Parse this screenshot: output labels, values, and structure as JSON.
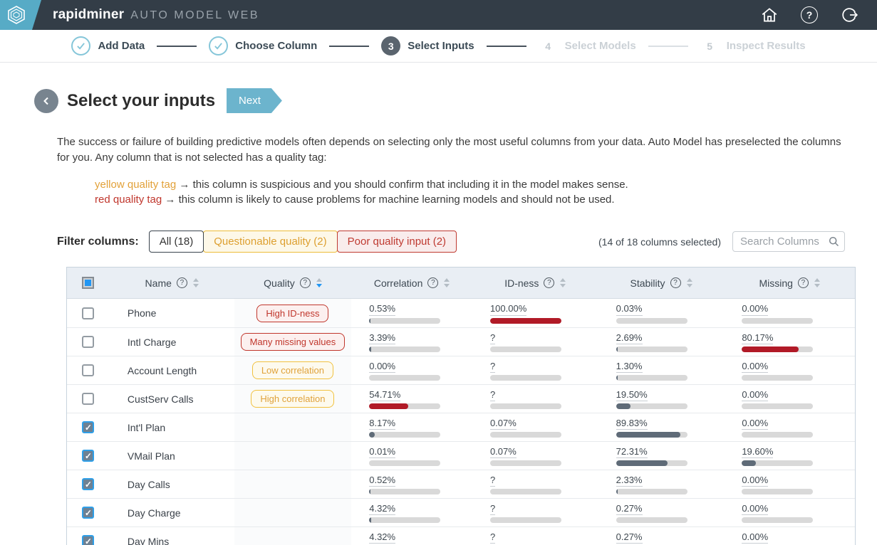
{
  "topbar": {
    "brand": "rapidminer",
    "brand_suffix": "AUTO MODEL WEB"
  },
  "icons": {
    "help_glyph": "?"
  },
  "stepper": {
    "steps": [
      {
        "label": "Add Data",
        "number": "",
        "state": "done"
      },
      {
        "label": "Choose Column",
        "number": "",
        "state": "done"
      },
      {
        "label": "Select Inputs",
        "number": "3",
        "state": "current"
      },
      {
        "label": "Select Models",
        "number": "4",
        "state": "upcoming"
      },
      {
        "label": "Inspect Results",
        "number": "5",
        "state": "upcoming"
      }
    ]
  },
  "header": {
    "title": "Select your inputs",
    "next_label": "Next"
  },
  "intro": {
    "paragraph": "The success or failure of building predictive models often depends on selecting only the most useful columns from your data. Auto Model has preselected the columns for you. Any column that is not selected has a quality tag:",
    "yellow_tag_label": "yellow quality tag",
    "yellow_tag_text": " → this column is suspicious and you should confirm that including it in the model makes sense.",
    "red_tag_label": "red quality tag",
    "red_tag_text": " → this column is likely to cause problems for machine learning models and should not be used."
  },
  "filter": {
    "label": "Filter columns:",
    "all_label": "All (18)",
    "questionable_label": "Questionable quality (2)",
    "poor_label": "Poor quality input (2)",
    "selection_summary": "(14 of 18 columns selected)",
    "search_placeholder": "Search Columns"
  },
  "table": {
    "columns": [
      {
        "label": "Name",
        "sort": ""
      },
      {
        "label": "Quality",
        "sort": "desc"
      },
      {
        "label": "Correlation",
        "sort": ""
      },
      {
        "label": "ID-ness",
        "sort": ""
      },
      {
        "label": "Stability",
        "sort": ""
      },
      {
        "label": "Missing",
        "sort": ""
      }
    ],
    "header_checkbox_state": "indeterminate",
    "rows": [
      {
        "name": "Phone",
        "checked": false,
        "quality": {
          "label": "High ID-ness",
          "type": "red"
        },
        "correlation": {
          "value": "0.53%",
          "fill": 2,
          "color": "slate"
        },
        "idness": {
          "value": "100.00%",
          "fill": 100,
          "color": "red"
        },
        "stability": {
          "value": "0.03%",
          "fill": 0,
          "color": "slate"
        },
        "missing": {
          "value": "0.00%",
          "fill": 0,
          "color": "slate"
        }
      },
      {
        "name": "Intl Charge",
        "checked": false,
        "quality": {
          "label": "Many missing values",
          "type": "red"
        },
        "correlation": {
          "value": "3.39%",
          "fill": 3,
          "color": "slate"
        },
        "idness": {
          "value": "?",
          "fill": 0,
          "color": "slate"
        },
        "stability": {
          "value": "2.69%",
          "fill": 2,
          "color": "slate"
        },
        "missing": {
          "value": "80.17%",
          "fill": 80,
          "color": "red"
        }
      },
      {
        "name": "Account Length",
        "checked": false,
        "quality": {
          "label": "Low correlation",
          "type": "yellow"
        },
        "correlation": {
          "value": "0.00%",
          "fill": 0,
          "color": "slate"
        },
        "idness": {
          "value": "?",
          "fill": 0,
          "color": "slate"
        },
        "stability": {
          "value": "1.30%",
          "fill": 2,
          "color": "slate"
        },
        "missing": {
          "value": "0.00%",
          "fill": 0,
          "color": "slate"
        }
      },
      {
        "name": "CustServ Calls",
        "checked": false,
        "quality": {
          "label": "High correlation",
          "type": "yellow"
        },
        "correlation": {
          "value": "54.71%",
          "fill": 55,
          "color": "red"
        },
        "idness": {
          "value": "?",
          "fill": 0,
          "color": "slate"
        },
        "stability": {
          "value": "19.50%",
          "fill": 20,
          "color": "slate"
        },
        "missing": {
          "value": "0.00%",
          "fill": 0,
          "color": "slate"
        }
      },
      {
        "name": "Int'l Plan",
        "checked": true,
        "quality": {
          "label": null,
          "type": null
        },
        "correlation": {
          "value": "8.17%",
          "fill": 8,
          "color": "slate"
        },
        "idness": {
          "value": "0.07%",
          "fill": 0,
          "color": "slate"
        },
        "stability": {
          "value": "89.83%",
          "fill": 90,
          "color": "slate"
        },
        "missing": {
          "value": "0.00%",
          "fill": 0,
          "color": "slate"
        }
      },
      {
        "name": "VMail Plan",
        "checked": true,
        "quality": {
          "label": null,
          "type": null
        },
        "correlation": {
          "value": "0.01%",
          "fill": 0,
          "color": "slate"
        },
        "idness": {
          "value": "0.07%",
          "fill": 0,
          "color": "slate"
        },
        "stability": {
          "value": "72.31%",
          "fill": 72,
          "color": "slate"
        },
        "missing": {
          "value": "19.60%",
          "fill": 20,
          "color": "slate"
        }
      },
      {
        "name": "Day Calls",
        "checked": true,
        "quality": {
          "label": null,
          "type": null
        },
        "correlation": {
          "value": "0.52%",
          "fill": 2,
          "color": "slate"
        },
        "idness": {
          "value": "?",
          "fill": 0,
          "color": "slate"
        },
        "stability": {
          "value": "2.33%",
          "fill": 2,
          "color": "slate"
        },
        "missing": {
          "value": "0.00%",
          "fill": 0,
          "color": "slate"
        }
      },
      {
        "name": "Day Charge",
        "checked": true,
        "quality": {
          "label": null,
          "type": null
        },
        "correlation": {
          "value": "4.32%",
          "fill": 3,
          "color": "slate"
        },
        "idness": {
          "value": "?",
          "fill": 0,
          "color": "slate"
        },
        "stability": {
          "value": "0.27%",
          "fill": 0,
          "color": "slate"
        },
        "missing": {
          "value": "0.00%",
          "fill": 0,
          "color": "slate"
        }
      },
      {
        "name": "Day Mins",
        "checked": true,
        "quality": {
          "label": null,
          "type": null
        },
        "correlation": {
          "value": "4.32%",
          "fill": 3,
          "color": "slate"
        },
        "idness": {
          "value": "?",
          "fill": 0,
          "color": "slate"
        },
        "stability": {
          "value": "0.27%",
          "fill": 0,
          "color": "slate"
        },
        "missing": {
          "value": "0.00%",
          "fill": 0,
          "color": "slate"
        }
      }
    ]
  },
  "colors": {
    "topbar_bg": "#333d47",
    "brand_blue": "#57abc6",
    "accent_blue": "#2196f3",
    "next_button": "#6cb4cd",
    "warning_yellow": "#e2a139",
    "danger_red": "#c0362c",
    "bar_red": "#b11a27",
    "bar_slate": "#5f6b78"
  }
}
